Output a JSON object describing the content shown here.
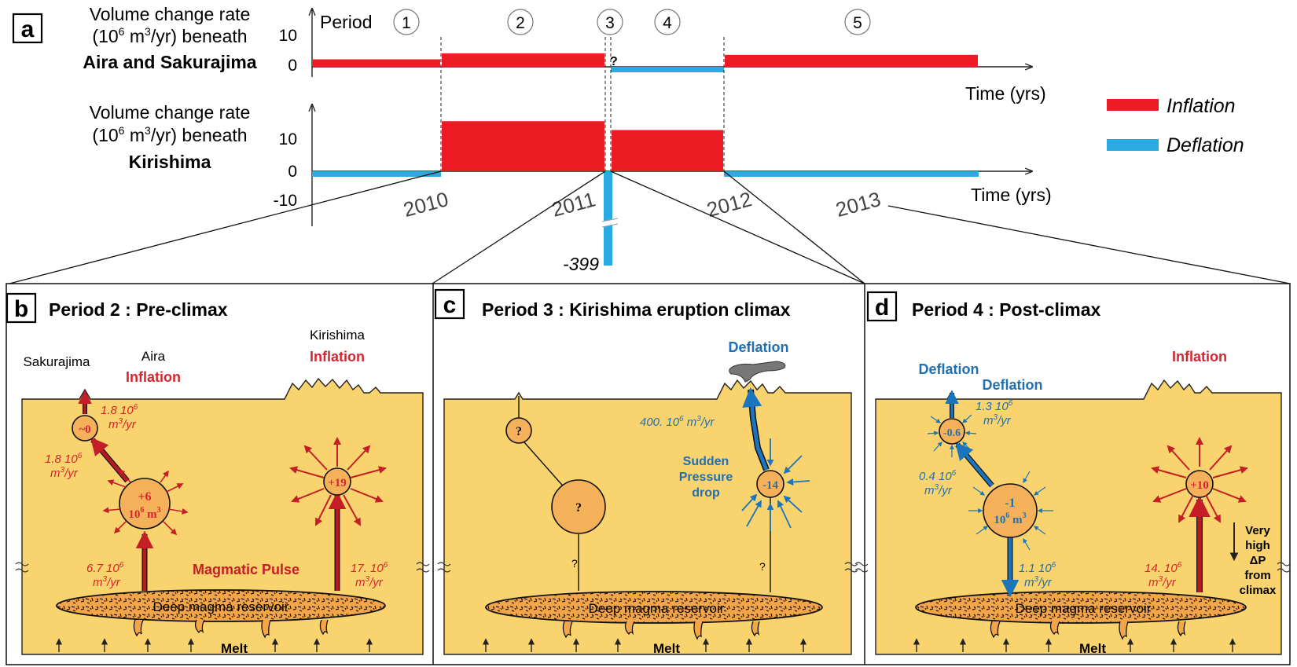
{
  "colors": {
    "inflation": "#ED1C24",
    "deflation": "#29ABE2",
    "ground": "#F9D36D",
    "chamber": "#F5B15A",
    "reservoir": "#F3A54A",
    "arrow_red": "#B8191F",
    "arrow_blue": "#1B75BC",
    "label_red": "#D22630",
    "label_blue": "#1F6FB2"
  },
  "panel_a": {
    "letter": "a",
    "top_chart": {
      "ylabel_line1": "Volume change rate",
      "ylabel_line2_pre": "(10",
      "ylabel_line2_exp1": "6",
      "ylabel_line2_mid": " m",
      "ylabel_line2_exp2": "3",
      "ylabel_line2_post": "/yr) beneath",
      "location": "Aira and Sakurajima",
      "tick_10": "10",
      "tick_0": "0",
      "xlabel": "Time (yrs)",
      "question_mark": "?"
    },
    "bottom_chart": {
      "ylabel_line1": "Volume change rate",
      "ylabel_line2_pre": "(10",
      "ylabel_line2_exp1": "6",
      "ylabel_line2_mid": " m",
      "ylabel_line2_exp2": "3",
      "ylabel_line2_post": "/yr) beneath",
      "location": "Kirishima",
      "tick_10": "10",
      "tick_0": "0",
      "tick_m10": "-10",
      "xlabel": "Time (yrs)",
      "spike_label": "-399"
    },
    "period_word": "Period",
    "periods": [
      "1",
      "2",
      "3",
      "4",
      "5"
    ],
    "years": [
      "2010",
      "2011",
      "2012",
      "2013"
    ],
    "legend": {
      "inflation": "Inflation",
      "deflation": "Deflation"
    }
  },
  "chart_data": [
    {
      "type": "bar",
      "title": "Aira and Sakurajima",
      "ylabel": "Volume change rate (10^6 m^3/yr)",
      "xlabel": "Time (yrs)",
      "ylim": [
        0,
        10
      ],
      "segments": [
        {
          "period": "1",
          "value": 2.5,
          "kind": "inflation"
        },
        {
          "period": "2",
          "value": 4.5,
          "kind": "inflation"
        },
        {
          "period": "3",
          "value": null,
          "label": "?"
        },
        {
          "period": "4",
          "value": -1,
          "kind": "deflation"
        },
        {
          "period": "5",
          "value": 4,
          "kind": "inflation"
        }
      ]
    },
    {
      "type": "bar",
      "title": "Kirishima",
      "ylabel": "Volume change rate (10^6 m^3/yr)",
      "xlabel": "Time (yrs)",
      "ylim": [
        -10,
        10
      ],
      "segments": [
        {
          "period": "1",
          "value": -1,
          "kind": "deflation"
        },
        {
          "period": "2",
          "value": 17,
          "kind": "inflation"
        },
        {
          "period": "3",
          "value": -399,
          "kind": "deflation"
        },
        {
          "period": "4",
          "value": 14,
          "kind": "inflation"
        },
        {
          "period": "5",
          "value": -1,
          "kind": "deflation"
        }
      ]
    }
  ],
  "panel_b": {
    "letter": "b",
    "title": "Period 2 : Pre-climax",
    "sakurajima": "Sakurajima",
    "aira": "Aira",
    "aira_state": "Inflation",
    "kirishima": "Kirishima",
    "kirishima_state": "Inflation",
    "small_chamber": "~0",
    "rate_top": "1.8 10",
    "rate_top_exp": "6",
    "rate_top_unit": "m",
    "rate_top_unit_exp": "3",
    "rate_top_unit_post": "/yr",
    "rate_left": "1.8 10",
    "rate_left_exp": "6",
    "rate_left_unit": "m",
    "rate_left_unit_exp": "3",
    "rate_left_unit_post": "/yr",
    "big_chamber_l1": "+6",
    "big_chamber_l2": "10",
    "big_chamber_exp": "6",
    "big_chamber_unit": " m",
    "big_chamber_unit_exp": "3",
    "kirishima_chamber": "+19",
    "rate_deep_left": "6.7 10",
    "rate_deep_left_exp": "6",
    "rate_deep_left_unit": "m",
    "rate_deep_left_unit_exp": "3",
    "rate_deep_left_unit_post": "/yr",
    "magmatic_pulse": "Magmatic Pulse",
    "rate_deep_right": "17. 10",
    "rate_deep_right_exp": "6",
    "rate_deep_right_unit": "m",
    "rate_deep_right_unit_exp": "3",
    "rate_deep_right_unit_post": "/yr",
    "reservoir": "Deep magma reservoir",
    "melt": "Melt"
  },
  "panel_c": {
    "letter": "c",
    "title": "Period 3 : Kirishima eruption climax",
    "deflation": "Deflation",
    "rate": "400. 10",
    "rate_exp": "6",
    "rate_unit": " m",
    "rate_unit_exp": "3",
    "rate_unit_post": "/yr",
    "sudden_l1": "Sudden",
    "sudden_l2": "Pressure",
    "sudden_l3": "drop",
    "kirishima_chamber": "-14",
    "small_q": "?",
    "big_q": "?",
    "conduit_q_left": "?",
    "conduit_q_right": "?",
    "reservoir": "Deep magma reservoir",
    "melt": "Melt"
  },
  "panel_d": {
    "letter": "d",
    "title": "Period 4 : Post-climax",
    "deflation_1": "Deflation",
    "deflation_2": "Deflation",
    "inflation": "Inflation",
    "small_chamber": "-0.6",
    "rate_top": "1.3 10",
    "rate_top_exp": "6",
    "rate_top_unit": "m",
    "rate_top_unit_exp": "3",
    "rate_top_unit_post": "/yr",
    "rate_mid": "0.4 10",
    "rate_mid_exp": "6",
    "rate_mid_unit": "m",
    "rate_mid_unit_exp": "3",
    "rate_mid_unit_post": "/yr",
    "big_chamber_l1": "-1",
    "big_chamber_l2": "10",
    "big_chamber_exp": "6",
    "big_chamber_unit": " m",
    "big_chamber_unit_exp": "3",
    "kirishima_chamber": "+10",
    "rate_deep_left": "1.1 10",
    "rate_deep_left_exp": "6",
    "rate_deep_left_unit": "m",
    "rate_deep_left_unit_exp": "3",
    "rate_deep_left_unit_post": "/yr",
    "rate_deep_right": "14. 10",
    "rate_deep_right_exp": "6",
    "rate_deep_right_unit": "m",
    "rate_deep_right_unit_exp": "3",
    "rate_deep_right_unit_post": "/yr",
    "very_l1": "Very",
    "very_l2": "high",
    "very_l3": "ΔP",
    "very_l4": "from",
    "very_l5": "climax",
    "reservoir": "Deep magma reservoir",
    "melt": "Melt"
  },
  "break_mark": "≈"
}
